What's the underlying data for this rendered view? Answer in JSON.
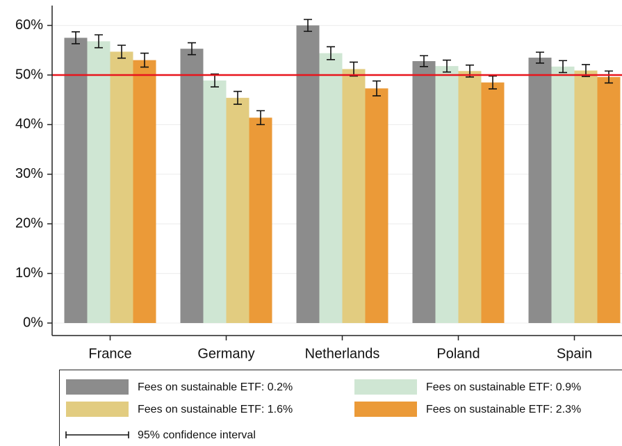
{
  "chart_data": {
    "type": "bar",
    "categories": [
      "France",
      "Germany",
      "Netherlands",
      "Poland",
      "Spain"
    ],
    "series": [
      {
        "name": "Fees on sustainable ETF: 0.2%",
        "color": "#8c8c8c",
        "values": [
          57.5,
          55.3,
          60.0,
          52.8,
          53.5
        ],
        "errors": [
          1.2,
          1.2,
          1.2,
          1.1,
          1.1
        ]
      },
      {
        "name": "Fees on sustainable ETF: 0.9%",
        "color": "#cfe6d3",
        "values": [
          56.8,
          48.9,
          54.4,
          51.8,
          51.7
        ],
        "errors": [
          1.3,
          1.3,
          1.3,
          1.2,
          1.2
        ]
      },
      {
        "name": "Fees on sustainable ETF: 1.6%",
        "color": "#e2cc80",
        "values": [
          54.7,
          45.4,
          51.2,
          50.8,
          50.9
        ],
        "errors": [
          1.3,
          1.3,
          1.4,
          1.2,
          1.2
        ]
      },
      {
        "name": "Fees on sustainable ETF: 2.3%",
        "color": "#eb9a38",
        "values": [
          53.0,
          41.4,
          47.3,
          48.5,
          49.6
        ],
        "errors": [
          1.4,
          1.4,
          1.5,
          1.3,
          1.2
        ]
      }
    ],
    "reference_line": {
      "value": 50,
      "color": "#e8141c"
    },
    "error_bar_legend": "95% confidence interval",
    "ylim": [
      0,
      64
    ],
    "yticks": [
      {
        "value": 0,
        "label": "0%"
      },
      {
        "value": 10,
        "label": "10%"
      },
      {
        "value": 20,
        "label": "20%"
      },
      {
        "value": 30,
        "label": "30%"
      },
      {
        "value": 40,
        "label": "40%"
      },
      {
        "value": 50,
        "label": "50%"
      },
      {
        "value": 60,
        "label": "60%"
      }
    ],
    "grid": true
  }
}
